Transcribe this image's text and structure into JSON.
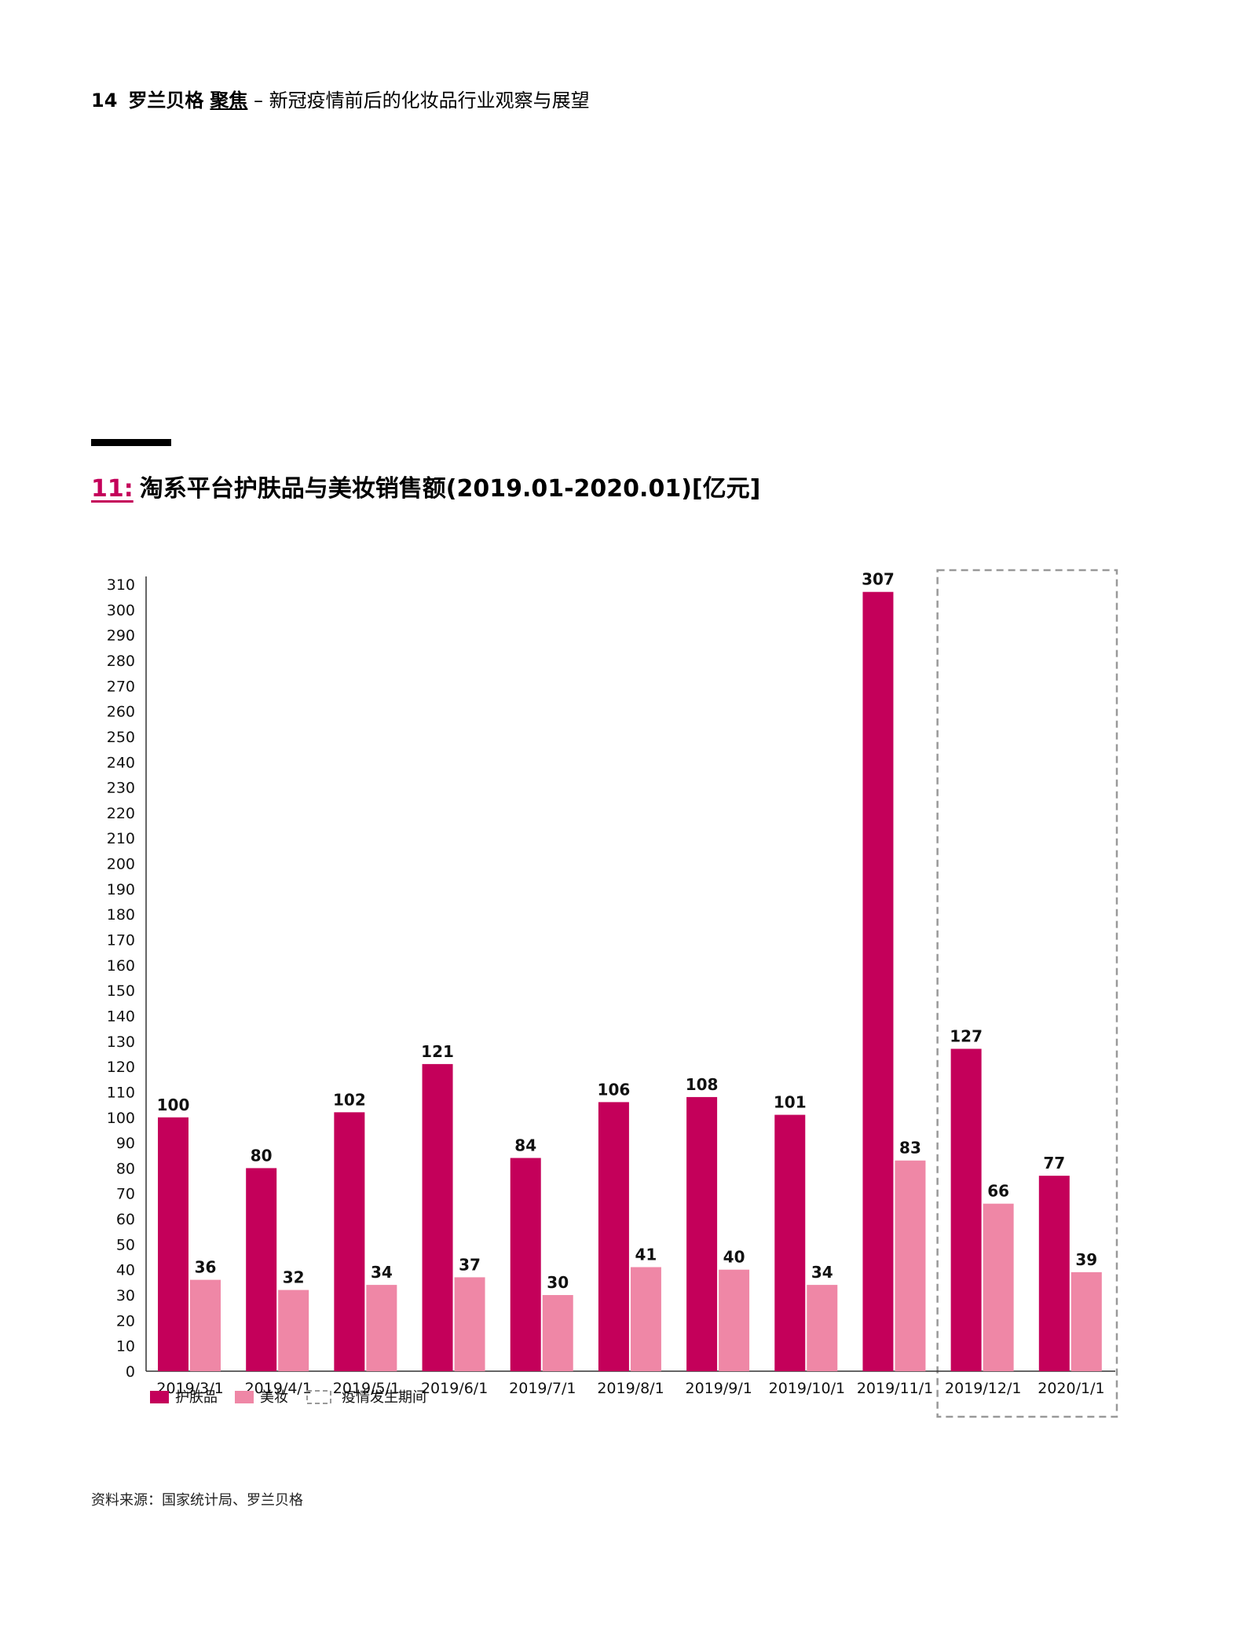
{
  "header": {
    "page_number": "14",
    "brand": "罗兰贝格",
    "series": "聚焦",
    "separator": " – ",
    "subtitle": "新冠疫情前后的化妆品行业观察与展望"
  },
  "figure": {
    "number": "11:",
    "title": "淘系平台护肤品与美妆销售额(2019.01-2020.01)[亿元]"
  },
  "source": "资料来源：国家统计局、罗兰贝格",
  "colors": {
    "skincare": "#c4005a",
    "makeup": "#ef87a6",
    "highlight_border": "#999999"
  },
  "chart_data": {
    "type": "bar",
    "categories": [
      "2019/3/1",
      "2019/4/1",
      "2019/5/1",
      "2019/6/1",
      "2019/7/1",
      "2019/8/1",
      "2019/9/1",
      "2019/10/1",
      "2019/11/1",
      "2019/12/1",
      "2020/1/1"
    ],
    "series": [
      {
        "name": "护肤品",
        "values": [
          100,
          80,
          102,
          121,
          84,
          106,
          108,
          101,
          307,
          127,
          77
        ]
      },
      {
        "name": "美妆",
        "values": [
          36,
          32,
          34,
          37,
          30,
          41,
          40,
          34,
          83,
          66,
          39
        ]
      }
    ],
    "ylim": [
      0,
      310
    ],
    "y_ticks": [
      0,
      10,
      20,
      30,
      40,
      50,
      60,
      70,
      80,
      90,
      100,
      110,
      120,
      130,
      140,
      150,
      160,
      170,
      180,
      190,
      200,
      210,
      220,
      230,
      240,
      250,
      260,
      270,
      280,
      290,
      300,
      310
    ],
    "highlight": {
      "label": "疫情发生期间",
      "categories": [
        "2019/12/1",
        "2020/1/1"
      ]
    },
    "legend_position": "bottom-left",
    "grid": false
  }
}
